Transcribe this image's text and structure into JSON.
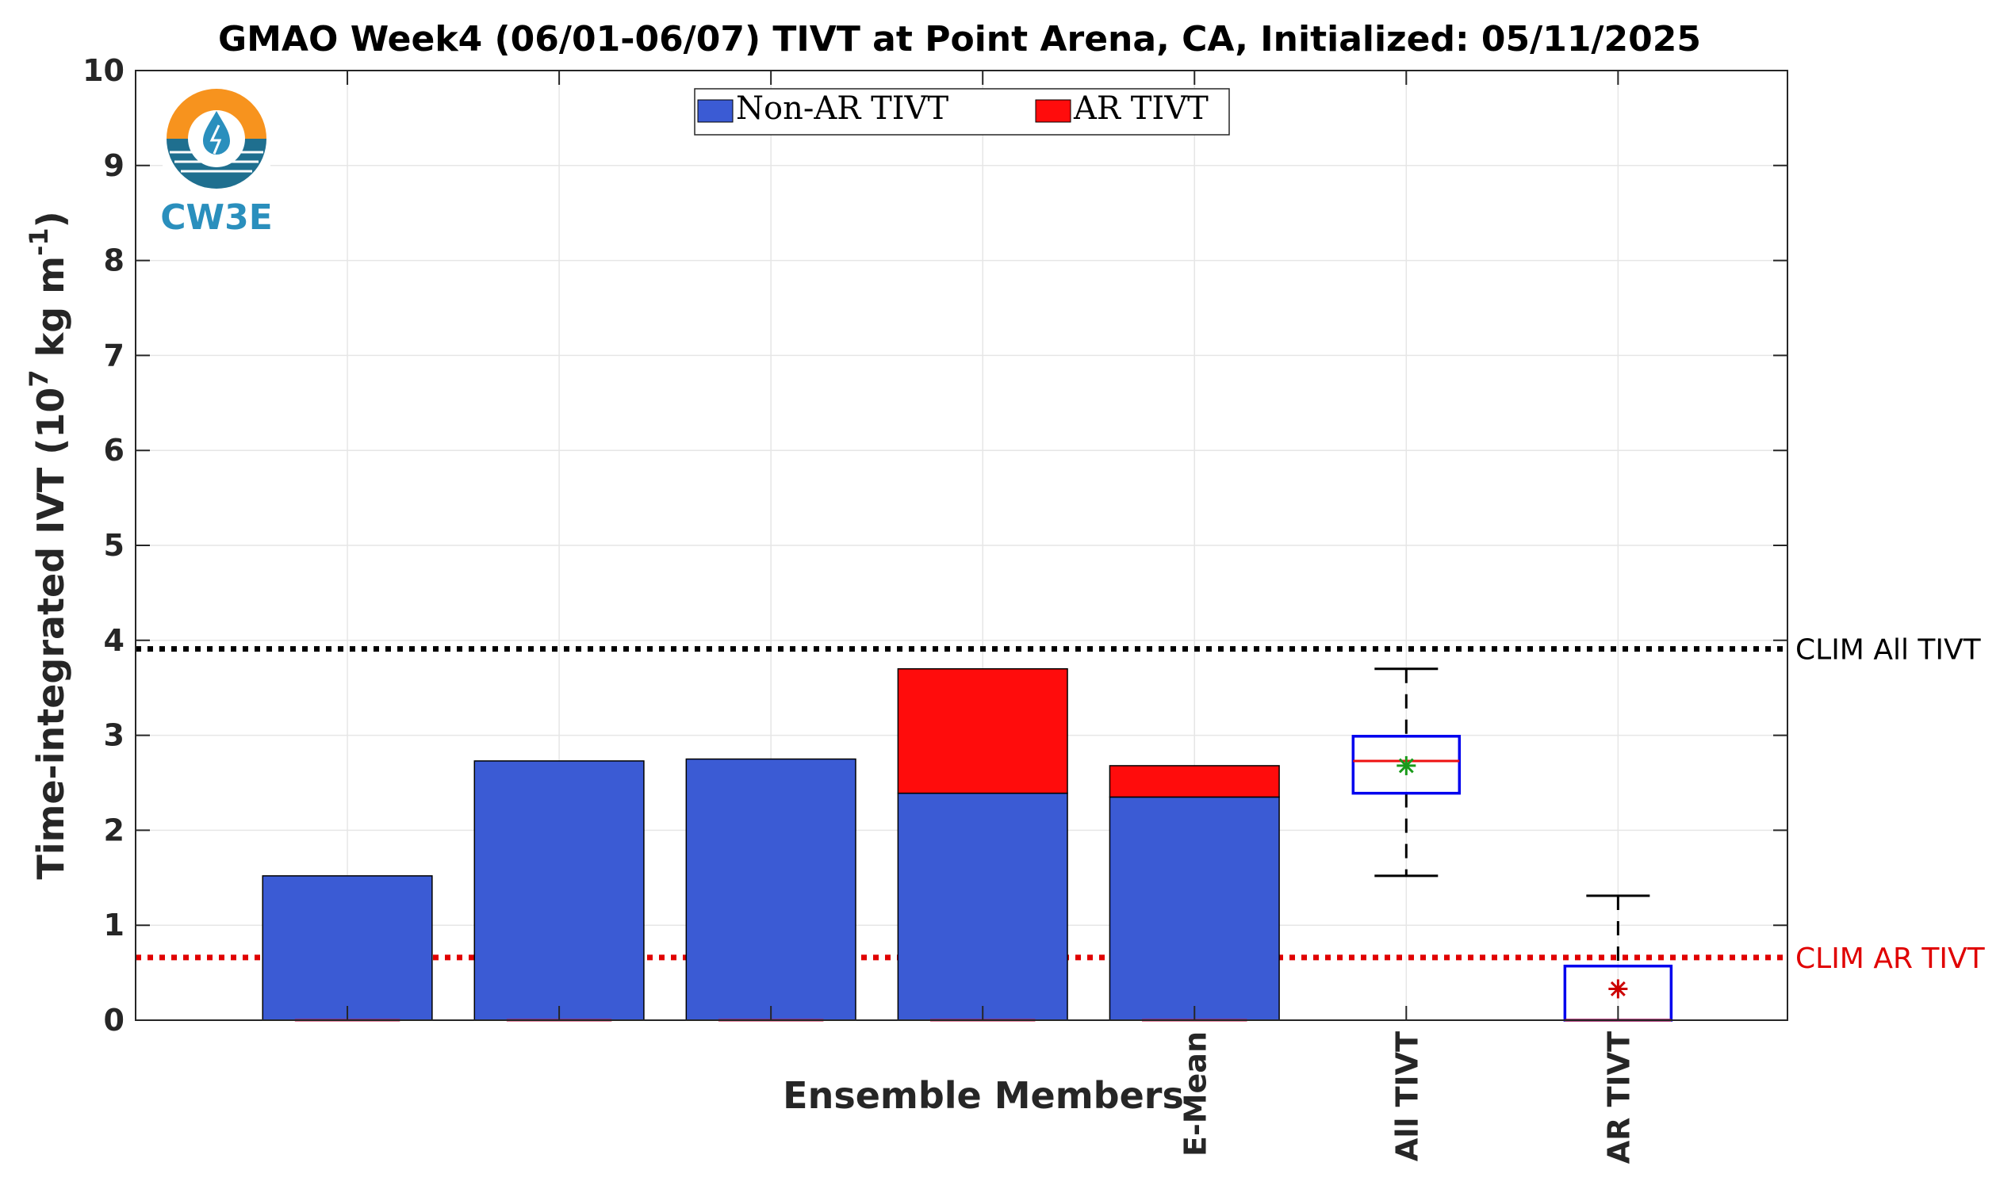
{
  "chart_data": {
    "type": "bar",
    "title": "GMAO Week4 (06/01-06/07) TIVT at Point Arena, CA, Initialized: 05/11/2025",
    "xlabel": "Ensemble Members",
    "ylabel": "Time-integrated IVT (10",
    "ylabel_exp1": "7",
    "ylabel_mid": " kg m",
    "ylabel_exp2": "-1",
    "ylabel_end": ")",
    "ylim": [
      0,
      10
    ],
    "yticks": [
      "0",
      "1",
      "2",
      "3",
      "4",
      "5",
      "6",
      "7",
      "8",
      "9",
      "10"
    ],
    "xtick_labels": [
      "",
      "",
      "",
      "",
      "E-Mean",
      "All TIVT",
      "AR TIVT"
    ],
    "legend": {
      "position": "top-center",
      "entries": [
        {
          "label": "Non-AR TIVT",
          "color": "#3b5bd4"
        },
        {
          "label": "AR TIVT",
          "color": "#ff0c0c"
        }
      ]
    },
    "stacked_bars": [
      {
        "category": "",
        "non_ar": 1.52,
        "ar": 0.0
      },
      {
        "category": "",
        "non_ar": 2.73,
        "ar": 0.0
      },
      {
        "category": "",
        "non_ar": 2.75,
        "ar": 0.0
      },
      {
        "category": "",
        "non_ar": 2.39,
        "ar": 1.31
      },
      {
        "category": "E-Mean",
        "non_ar": 2.35,
        "ar": 0.33
      }
    ],
    "boxplots": [
      {
        "category": "All TIVT",
        "whisker_low": 1.52,
        "q1": 2.39,
        "median": 2.73,
        "q3": 2.99,
        "whisker_high": 3.7,
        "mean": 2.68,
        "mean_color": "#1a9a1a"
      },
      {
        "category": "AR TIVT",
        "whisker_low": 0.0,
        "q1": 0.0,
        "median": 0.0,
        "q3": 0.57,
        "whisker_high": 1.31,
        "mean": 0.33,
        "mean_color": "#cc0000"
      }
    ],
    "reference_lines": [
      {
        "label": "CLIM All TIVT",
        "value": 3.91,
        "color": "#000000"
      },
      {
        "label": "CLIM AR TIVT",
        "value": 0.66,
        "color": "#e00000"
      }
    ],
    "grid": true
  },
  "logo": {
    "text": "CW3E"
  }
}
